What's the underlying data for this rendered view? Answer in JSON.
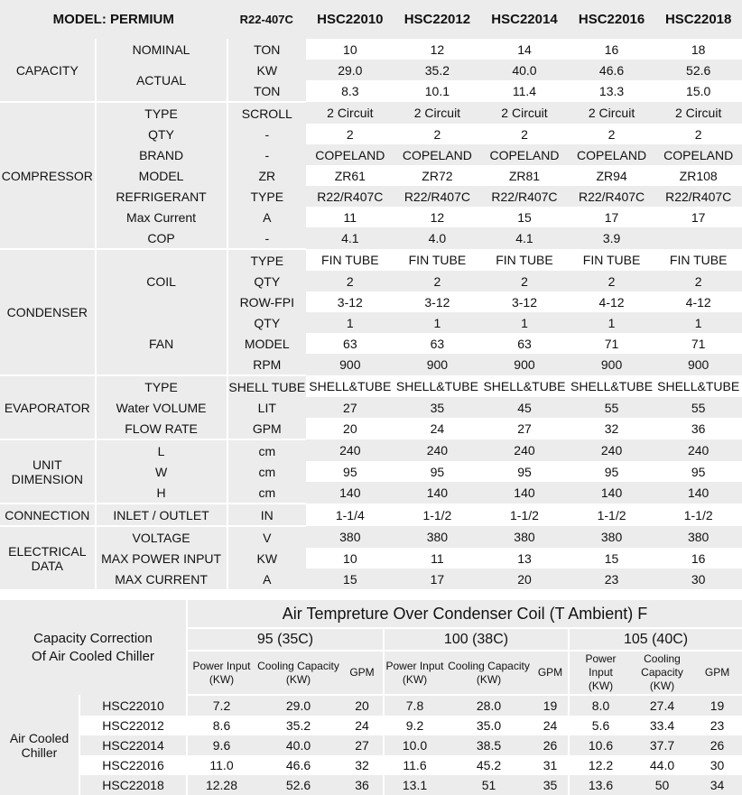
{
  "spec": {
    "header": {
      "model_label": "MODEL: PERMIUM",
      "refrigerant_label": "R22-407C",
      "models": [
        "HSC22010",
        "HSC22012",
        "HSC22014",
        "HSC22016",
        "HSC22018"
      ]
    },
    "groups": [
      {
        "name": "CAPACITY",
        "rows": [
          {
            "sub": "NOMINAL",
            "sub_span": 1,
            "unit": "TON",
            "values": [
              "10",
              "12",
              "14",
              "16",
              "18"
            ]
          },
          {
            "sub": "ACTUAL",
            "sub_span": 2,
            "unit": "KW",
            "values": [
              "29.0",
              "35.2",
              "40.0",
              "46.6",
              "52.6"
            ]
          },
          {
            "sub": null,
            "unit": "TON",
            "values": [
              "8.3",
              "10.1",
              "11.4",
              "13.3",
              "15.0"
            ]
          }
        ]
      },
      {
        "name": "COMPRESSOR",
        "rows": [
          {
            "sub": "TYPE",
            "sub_span": 1,
            "unit": "SCROLL",
            "values": [
              "2 Circuit",
              "2 Circuit",
              "2 Circuit",
              "2 Circuit",
              "2 Circuit"
            ]
          },
          {
            "sub": "QTY",
            "sub_span": 1,
            "unit": "-",
            "values": [
              "2",
              "2",
              "2",
              "2",
              "2"
            ]
          },
          {
            "sub": "BRAND",
            "sub_span": 1,
            "unit": "-",
            "values": [
              "COPELAND",
              "COPELAND",
              "COPELAND",
              "COPELAND",
              "COPELAND"
            ]
          },
          {
            "sub": "MODEL",
            "sub_span": 1,
            "unit": "ZR",
            "values": [
              "ZR61",
              "ZR72",
              "ZR81",
              "ZR94",
              "ZR108"
            ]
          },
          {
            "sub": "REFRIGERANT",
            "sub_span": 1,
            "unit": "TYPE",
            "values": [
              "R22/R407C",
              "R22/R407C",
              "R22/R407C",
              "R22/R407C",
              "R22/R407C"
            ]
          },
          {
            "sub": "Max Current",
            "sub_span": 1,
            "unit": "A",
            "values": [
              "11",
              "12",
              "15",
              "17",
              "17"
            ]
          },
          {
            "sub": "COP",
            "sub_span": 1,
            "unit": "-",
            "values": [
              "4.1",
              "4.0",
              "4.1",
              "3.9",
              ""
            ]
          }
        ]
      },
      {
        "name": "CONDENSER",
        "rows": [
          {
            "sub": "COIL",
            "sub_span": 3,
            "unit": "TYPE",
            "values": [
              "FIN TUBE",
              "FIN TUBE",
              "FIN TUBE",
              "FIN TUBE",
              "FIN TUBE"
            ]
          },
          {
            "sub": null,
            "unit": "QTY",
            "values": [
              "2",
              "2",
              "2",
              "2",
              "2"
            ]
          },
          {
            "sub": null,
            "unit": "ROW-FPI",
            "values": [
              "3-12",
              "3-12",
              "3-12",
              "4-12",
              "4-12"
            ]
          },
          {
            "sub": "FAN",
            "sub_span": 3,
            "unit": "QTY",
            "values": [
              "1",
              "1",
              "1",
              "1",
              "1"
            ]
          },
          {
            "sub": null,
            "unit": "MODEL",
            "values": [
              "63",
              "63",
              "63",
              "71",
              "71"
            ]
          },
          {
            "sub": null,
            "unit": "RPM",
            "values": [
              "900",
              "900",
              "900",
              "900",
              "900"
            ]
          }
        ]
      },
      {
        "name": "EVAPORATOR",
        "rows": [
          {
            "sub": "TYPE",
            "sub_span": 1,
            "unit": "SHELL TUBE",
            "values": [
              "SHELL&TUBE",
              "SHELL&TUBE",
              "SHELL&TUBE",
              "SHELL&TUBE",
              "SHELL&TUBE"
            ]
          },
          {
            "sub": "Water VOLUME",
            "sub_span": 1,
            "unit": "LIT",
            "values": [
              "27",
              "35",
              "45",
              "55",
              "55"
            ]
          },
          {
            "sub": "FLOW RATE",
            "sub_span": 1,
            "unit": "GPM",
            "values": [
              "20",
              "24",
              "27",
              "32",
              "36"
            ]
          }
        ]
      },
      {
        "name": "UNIT DIMENSION",
        "rows": [
          {
            "sub": "L",
            "sub_span": 1,
            "unit": "cm",
            "values": [
              "240",
              "240",
              "240",
              "240",
              "240"
            ]
          },
          {
            "sub": "W",
            "sub_span": 1,
            "unit": "cm",
            "values": [
              "95",
              "95",
              "95",
              "95",
              "95"
            ]
          },
          {
            "sub": "H",
            "sub_span": 1,
            "unit": "cm",
            "values": [
              "140",
              "140",
              "140",
              "140",
              "140"
            ]
          }
        ]
      },
      {
        "name": "CONNECTION",
        "rows": [
          {
            "sub": "INLET / OUTLET",
            "sub_span": 1,
            "unit": "IN",
            "values": [
              "1-1/4",
              "1-1/2",
              "1-1/2",
              "1-1/2",
              "1-1/2"
            ]
          }
        ]
      },
      {
        "name": "ELECTRICAL DATA",
        "rows": [
          {
            "sub": "VOLTAGE",
            "sub_span": 1,
            "unit": "V",
            "values": [
              "380",
              "380",
              "380",
              "380",
              "380"
            ]
          },
          {
            "sub": "MAX POWER INPUT",
            "sub_span": 1,
            "unit": "KW",
            "values": [
              "10",
              "11",
              "13",
              "15",
              "16"
            ]
          },
          {
            "sub": "MAX CURRENT",
            "sub_span": 1,
            "unit": "A",
            "values": [
              "15",
              "17",
              "20",
              "23",
              "30"
            ]
          }
        ]
      }
    ]
  },
  "correction": {
    "corner_label": "Capacity Correction Of Air Cooled Chiller",
    "title": "Air Tempreture Over Condenser Coil (T Ambient) F",
    "temperatures": [
      "95 (35C)",
      "100 (38C)",
      "105 (40C)"
    ],
    "subheaders": [
      [
        "Power Input (KW)",
        "Cooling Capacity (KW)",
        "GPM"
      ],
      [
        "Power Input (KW)",
        "Cooling Capacity (KW)",
        "GPM"
      ],
      [
        "Power Input (KW)",
        "Cooling Capacity (KW)",
        "GPM"
      ]
    ],
    "row_group_label": "Air Cooled Chiller",
    "rows": [
      {
        "model": "HSC22010",
        "values": [
          "7.2",
          "29.0",
          "20",
          "7.8",
          "28.0",
          "19",
          "8.0",
          "27.4",
          "19"
        ]
      },
      {
        "model": "HSC22012",
        "values": [
          "8.6",
          "35.2",
          "24",
          "9.2",
          "35.0",
          "24",
          "5.6",
          "33.4",
          "23"
        ]
      },
      {
        "model": "HSC22014",
        "values": [
          "9.6",
          "40.0",
          "27",
          "10.0",
          "38.5",
          "26",
          "10.6",
          "37.7",
          "26"
        ]
      },
      {
        "model": "HSC22016",
        "values": [
          "11.0",
          "46.6",
          "32",
          "11.6",
          "45.2",
          "31",
          "12.2",
          "44.0",
          "30"
        ]
      },
      {
        "model": "HSC22018",
        "values": [
          "12.28",
          "52.6",
          "36",
          "13.1",
          "51",
          "35",
          "13.6",
          "50",
          "34"
        ]
      }
    ]
  }
}
